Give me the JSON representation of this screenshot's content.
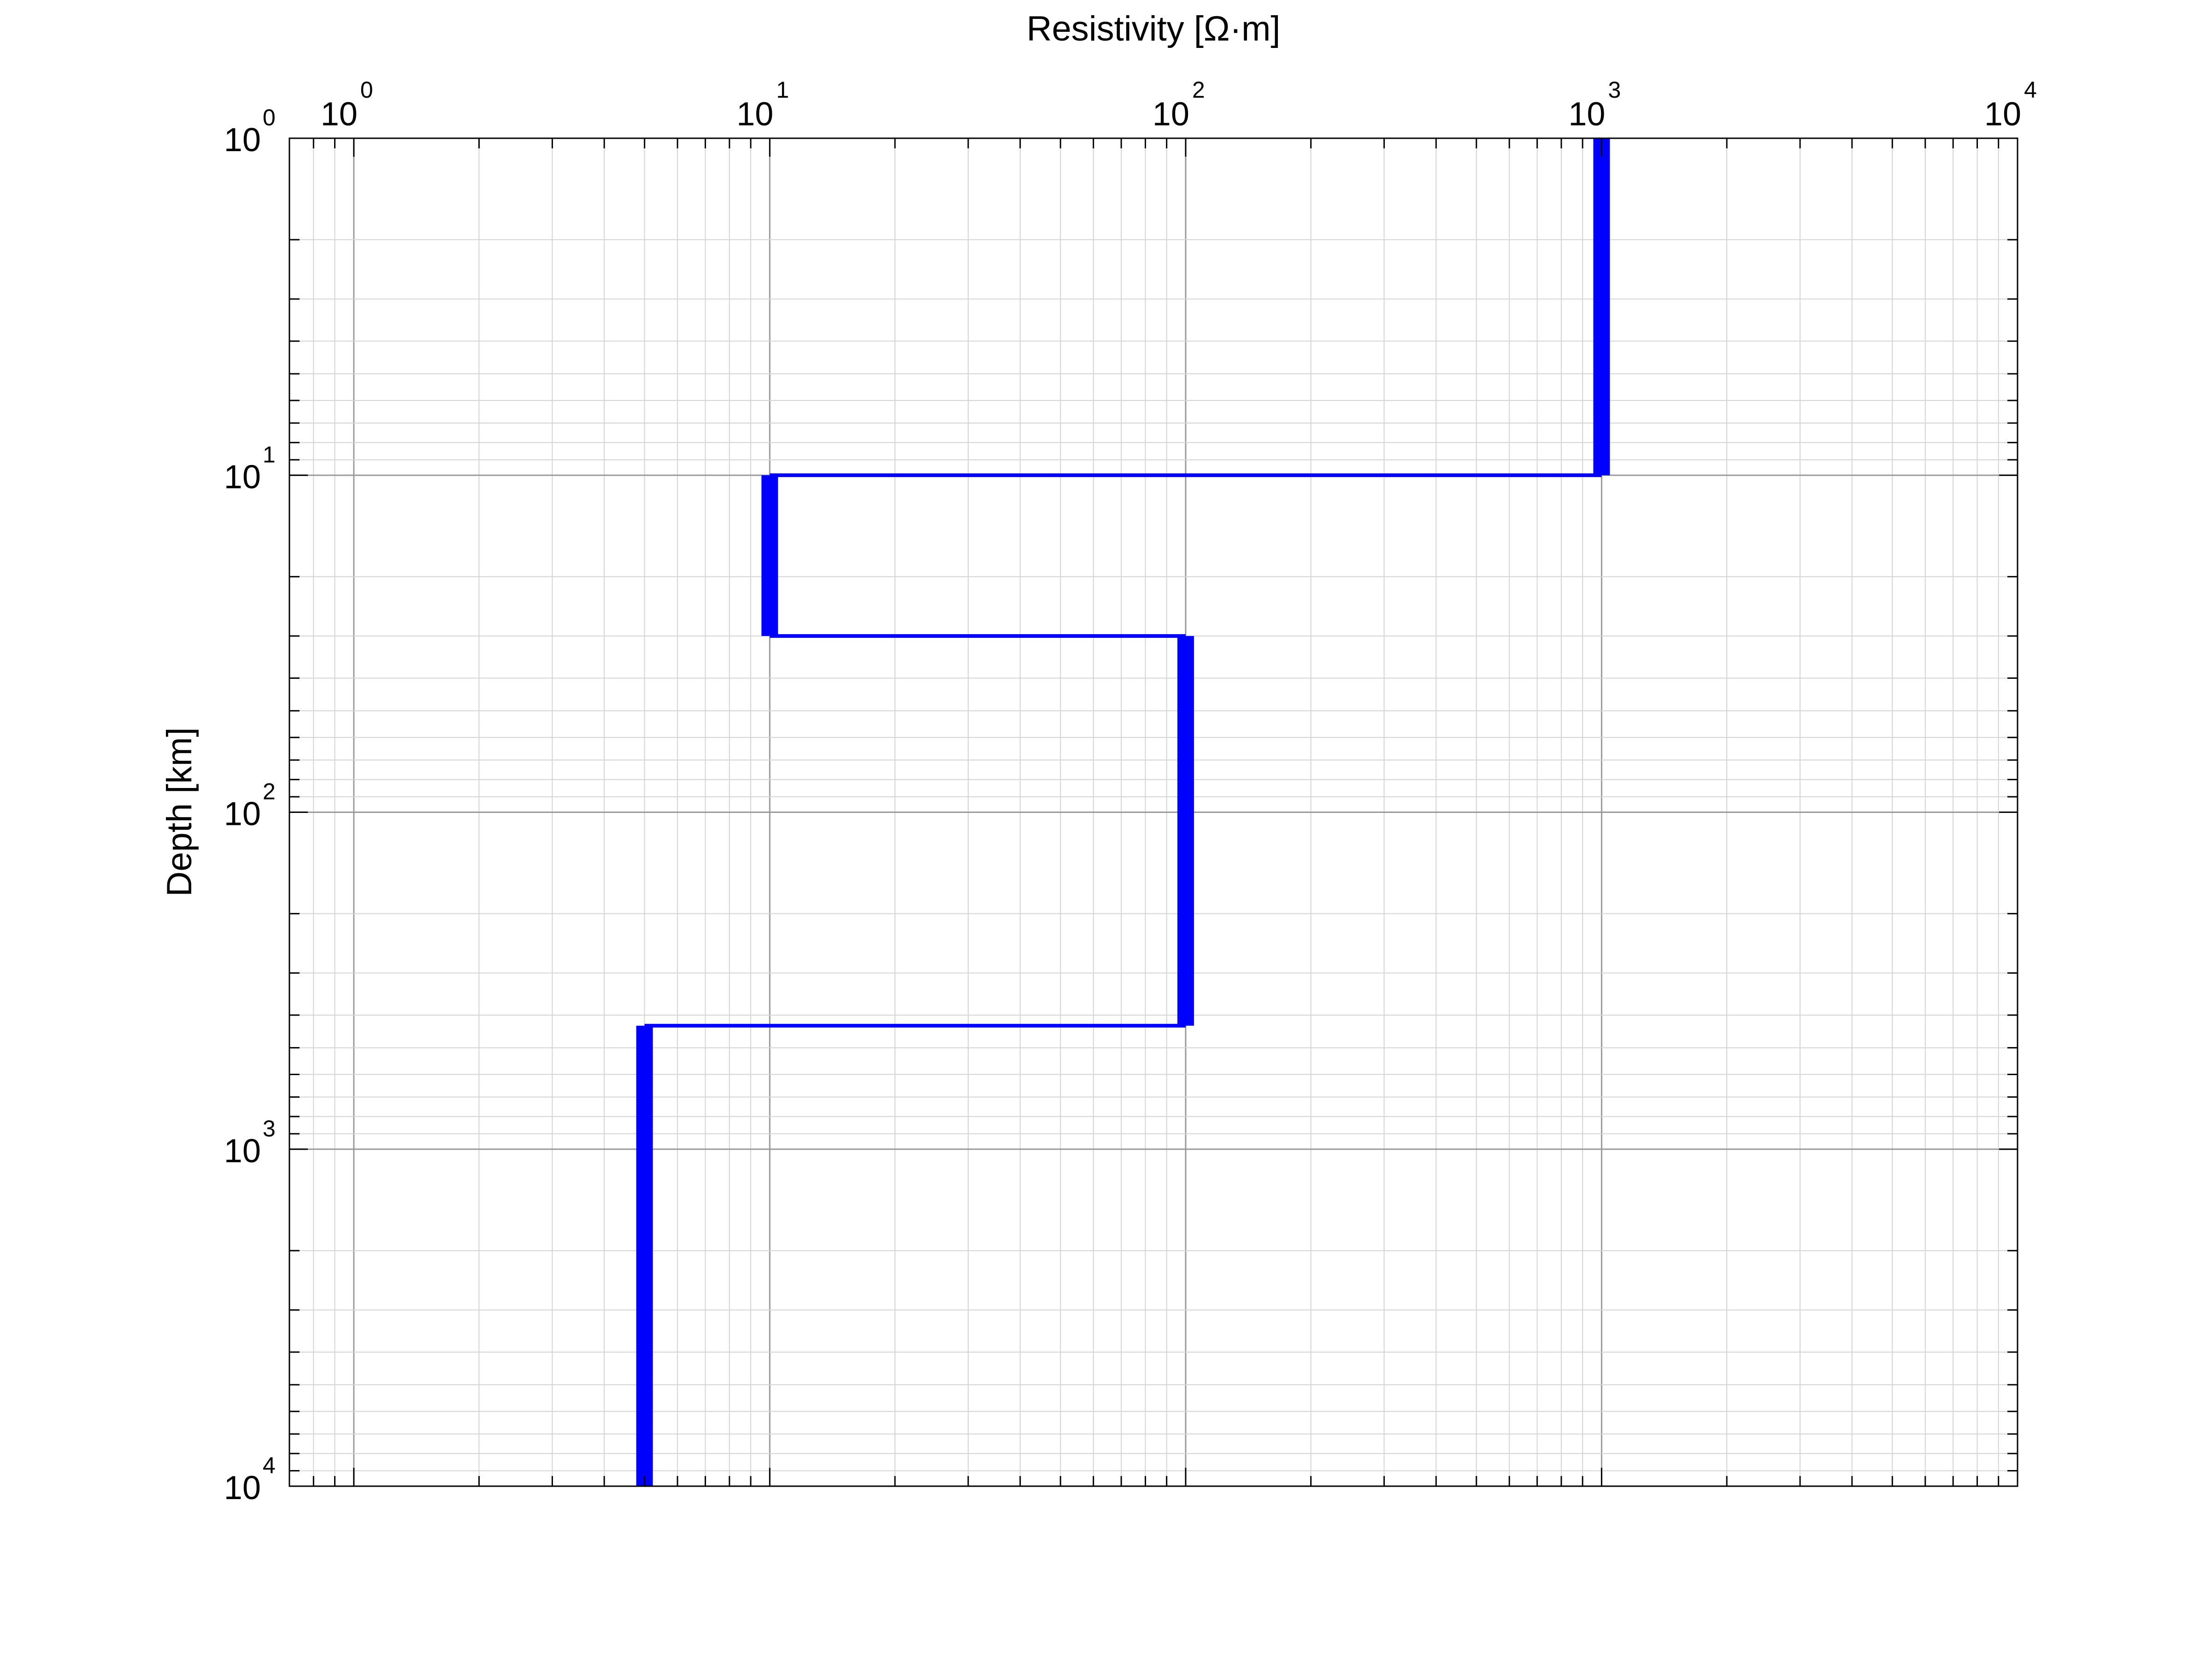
{
  "chart_data": {
    "type": "line",
    "title": "",
    "xlabel": "Resistivity [Ω·m]",
    "ylabel": "Depth [km]",
    "xscale": "log",
    "yscale": "log",
    "xlim": [
      0.7,
      10000
    ],
    "ylim": [
      1,
      10000
    ],
    "y_inverted": true,
    "x_axis_position": "top",
    "grid": true,
    "legend": "none",
    "x_ticks": [
      {
        "base": "10",
        "exp": "0",
        "value": 1
      },
      {
        "base": "10",
        "exp": "1",
        "value": 10
      },
      {
        "base": "10",
        "exp": "2",
        "value": 100
      },
      {
        "base": "10",
        "exp": "3",
        "value": 1000
      },
      {
        "base": "10",
        "exp": "4",
        "value": 10000
      }
    ],
    "y_ticks": [
      {
        "base": "10",
        "exp": "0",
        "value": 1
      },
      {
        "base": "10",
        "exp": "1",
        "value": 10
      },
      {
        "base": "10",
        "exp": "2",
        "value": 100
      },
      {
        "base": "10",
        "exp": "3",
        "value": 1000
      },
      {
        "base": "10",
        "exp": "4",
        "value": 10000
      }
    ],
    "series": [
      {
        "color": "#0000ff",
        "layers": [
          {
            "resistivity": 1000,
            "top": 1,
            "bottom": 10
          },
          {
            "resistivity": 10,
            "top": 10,
            "bottom": 30
          },
          {
            "resistivity": 100,
            "top": 30,
            "bottom": 430
          },
          {
            "resistivity": 5,
            "top": 430,
            "bottom": 10000
          }
        ]
      }
    ]
  }
}
